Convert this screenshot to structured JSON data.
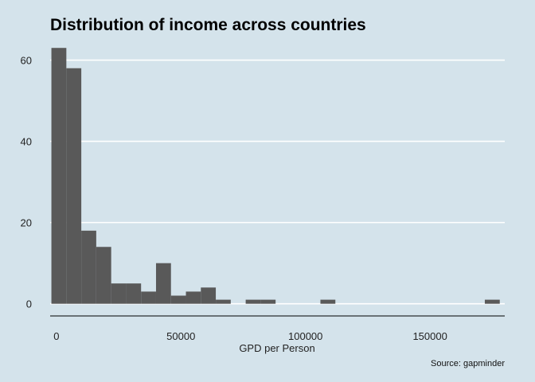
{
  "chart_data": {
    "type": "bar",
    "title": "Distribution of income across countries",
    "xlabel": "GPD per Person",
    "ylabel": "",
    "caption": "Source: gapminder",
    "xlim": [
      -2500,
      180000
    ],
    "ylim": [
      -3,
      65
    ],
    "x_ticks": [
      {
        "value": 0,
        "label": "0"
      },
      {
        "value": 50000,
        "label": "50000"
      },
      {
        "value": 100000,
        "label": "100000"
      },
      {
        "value": 150000,
        "label": "150000"
      }
    ],
    "y_ticks": [
      {
        "value": 0,
        "label": "0"
      },
      {
        "value": 20,
        "label": "20"
      },
      {
        "value": 40,
        "label": "40"
      },
      {
        "value": 60,
        "label": "60"
      }
    ],
    "bin_width": 6000,
    "bins": [
      {
        "start": -2000,
        "end": 4000,
        "count": 63
      },
      {
        "start": 4000,
        "end": 10000,
        "count": 58
      },
      {
        "start": 10000,
        "end": 16000,
        "count": 18
      },
      {
        "start": 16000,
        "end": 22000,
        "count": 14
      },
      {
        "start": 22000,
        "end": 28000,
        "count": 5
      },
      {
        "start": 28000,
        "end": 34000,
        "count": 5
      },
      {
        "start": 34000,
        "end": 40000,
        "count": 3
      },
      {
        "start": 40000,
        "end": 46000,
        "count": 10
      },
      {
        "start": 46000,
        "end": 52000,
        "count": 2
      },
      {
        "start": 52000,
        "end": 58000,
        "count": 3
      },
      {
        "start": 58000,
        "end": 64000,
        "count": 4
      },
      {
        "start": 64000,
        "end": 70000,
        "count": 1
      },
      {
        "start": 76000,
        "end": 82000,
        "count": 1
      },
      {
        "start": 82000,
        "end": 88000,
        "count": 1
      },
      {
        "start": 106000,
        "end": 112000,
        "count": 1
      },
      {
        "start": 172000,
        "end": 178000,
        "count": 1
      }
    ],
    "grid": "horizontal-major",
    "colors": {
      "background": "#d4e3eb",
      "bar": "#595959",
      "grid": "#ffffff",
      "axis": "#000000"
    }
  }
}
